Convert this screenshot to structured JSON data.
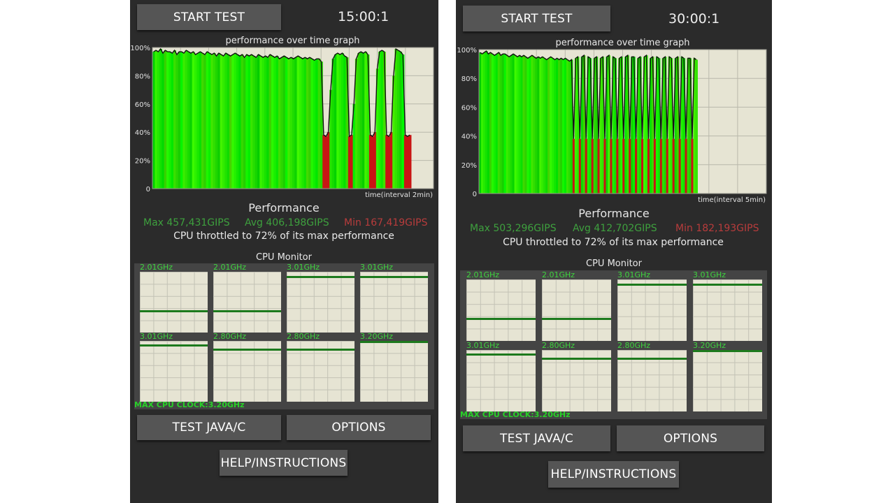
{
  "left": {
    "start_button": "START TEST",
    "timer": "15:00:1",
    "graph_title": "performance over time graph",
    "y_ticks": [
      "100%",
      "80%",
      "60%",
      "40%",
      "20%",
      "0"
    ],
    "x_label": "time(interval 2min)",
    "perf_title": "Performance",
    "max": "Max 457,431GIPS",
    "avg": "Avg 406,198GIPS",
    "min": "Min 167,419GIPS",
    "throttle": "CPU throttled to 72% of its max performance",
    "monitor_title": "CPU Monitor",
    "cores": [
      {
        "label": "2.01GHz",
        "level": 0.35
      },
      {
        "label": "2.01GHz",
        "level": 0.35
      },
      {
        "label": "3.01GHz",
        "level": 0.93
      },
      {
        "label": "3.01GHz",
        "level": 0.93
      },
      {
        "label": "3.01GHz",
        "level": 0.94
      },
      {
        "label": "2.80GHz",
        "level": 0.87
      },
      {
        "label": "2.80GHz",
        "level": 0.87
      },
      {
        "label": "3.20GHz",
        "level": 1.0
      }
    ],
    "max_clock": "MAX CPU CLOCK:3.20GHz",
    "java_button": "TEST JAVA/C",
    "options_button": "OPTIONS",
    "help_button": "HELP/INSTRUCTIONS"
  },
  "right": {
    "start_button": "START TEST",
    "timer": "30:00:1",
    "graph_title": "performance over time graph",
    "y_ticks": [
      "100%",
      "80%",
      "60%",
      "40%",
      "20%",
      "0"
    ],
    "x_label": "time(interval 5min)",
    "perf_title": "Performance",
    "max": "Max 503,296GIPS",
    "avg": "Avg 412,702GIPS",
    "min": "Min 182,193GIPS",
    "throttle": "CPU throttled to 72% of its max performance",
    "monitor_title": "CPU Monitor",
    "cores": [
      {
        "label": "2.01GHz",
        "level": 0.35
      },
      {
        "label": "2.01GHz",
        "level": 0.35
      },
      {
        "label": "3.01GHz",
        "level": 0.93
      },
      {
        "label": "3.01GHz",
        "level": 0.93
      },
      {
        "label": "3.01GHz",
        "level": 0.94
      },
      {
        "label": "2.80GHz",
        "level": 0.87
      },
      {
        "label": "2.80GHz",
        "level": 0.87
      },
      {
        "label": "3.20GHz",
        "level": 1.0
      }
    ],
    "max_clock": "MAX CPU CLOCK:3.20GHz",
    "java_button": "TEST JAVA/C",
    "options_button": "OPTIONS",
    "help_button": "HELP/INSTRUCTIONS"
  },
  "chart_data": [
    {
      "type": "area",
      "title": "performance over time graph",
      "xlabel": "time(interval 2min)",
      "ylabel": "",
      "ylim": [
        0,
        100
      ],
      "y_unit": "%",
      "x_fraction_range": [
        0,
        0.92
      ],
      "throttle_threshold": 40,
      "samples": [
        97,
        98,
        97,
        99,
        96,
        98,
        97,
        97,
        96,
        98,
        95,
        97,
        97,
        96,
        98,
        97,
        96,
        97,
        95,
        96,
        97,
        96,
        95,
        97,
        96,
        95,
        96,
        94,
        96,
        95,
        94,
        96,
        95,
        94,
        95,
        96,
        95,
        94,
        95,
        93,
        95,
        94,
        95,
        94,
        93,
        95,
        94,
        93,
        94,
        93,
        95,
        94,
        93,
        94,
        92,
        93,
        94,
        93,
        92,
        93,
        92,
        93,
        94,
        93,
        92,
        93,
        92,
        93,
        92,
        91,
        92,
        92,
        90,
        38,
        37,
        40,
        70,
        92,
        95,
        96,
        95,
        96,
        94,
        93,
        37,
        38,
        60,
        92,
        96,
        97,
        96,
        97,
        95,
        38,
        37,
        40,
        85,
        97,
        98,
        97,
        38,
        37,
        40,
        80,
        99,
        98,
        97,
        95,
        38,
        37,
        38
      ]
    },
    {
      "type": "area",
      "title": "performance over time graph",
      "xlabel": "time(interval 5min)",
      "ylabel": "",
      "ylim": [
        0,
        100
      ],
      "y_unit": "%",
      "x_fraction_range": [
        0,
        0.76
      ],
      "throttle_threshold": 40,
      "samples": [
        98,
        97,
        98,
        99,
        97,
        98,
        97,
        96,
        97,
        98,
        96,
        97,
        97,
        96,
        95,
        96,
        97,
        96,
        95,
        96,
        95,
        96,
        95,
        94,
        95,
        96,
        95,
        94,
        95,
        94,
        95,
        94,
        93,
        94,
        95,
        94,
        93,
        94,
        93,
        94,
        93,
        94,
        93,
        92,
        93,
        38,
        94,
        95,
        38,
        95,
        96,
        38,
        95,
        94,
        38,
        94,
        95,
        38,
        94,
        95,
        38,
        95,
        96,
        38,
        95,
        94,
        38,
        94,
        95,
        38,
        95,
        96,
        38,
        95,
        95,
        38,
        94,
        95,
        38,
        95,
        96,
        38,
        94,
        95,
        38,
        95,
        94,
        38,
        94,
        95,
        38,
        95,
        94,
        38,
        94,
        95,
        38,
        95,
        94,
        38,
        94,
        94,
        38,
        94,
        93
      ]
    }
  ]
}
